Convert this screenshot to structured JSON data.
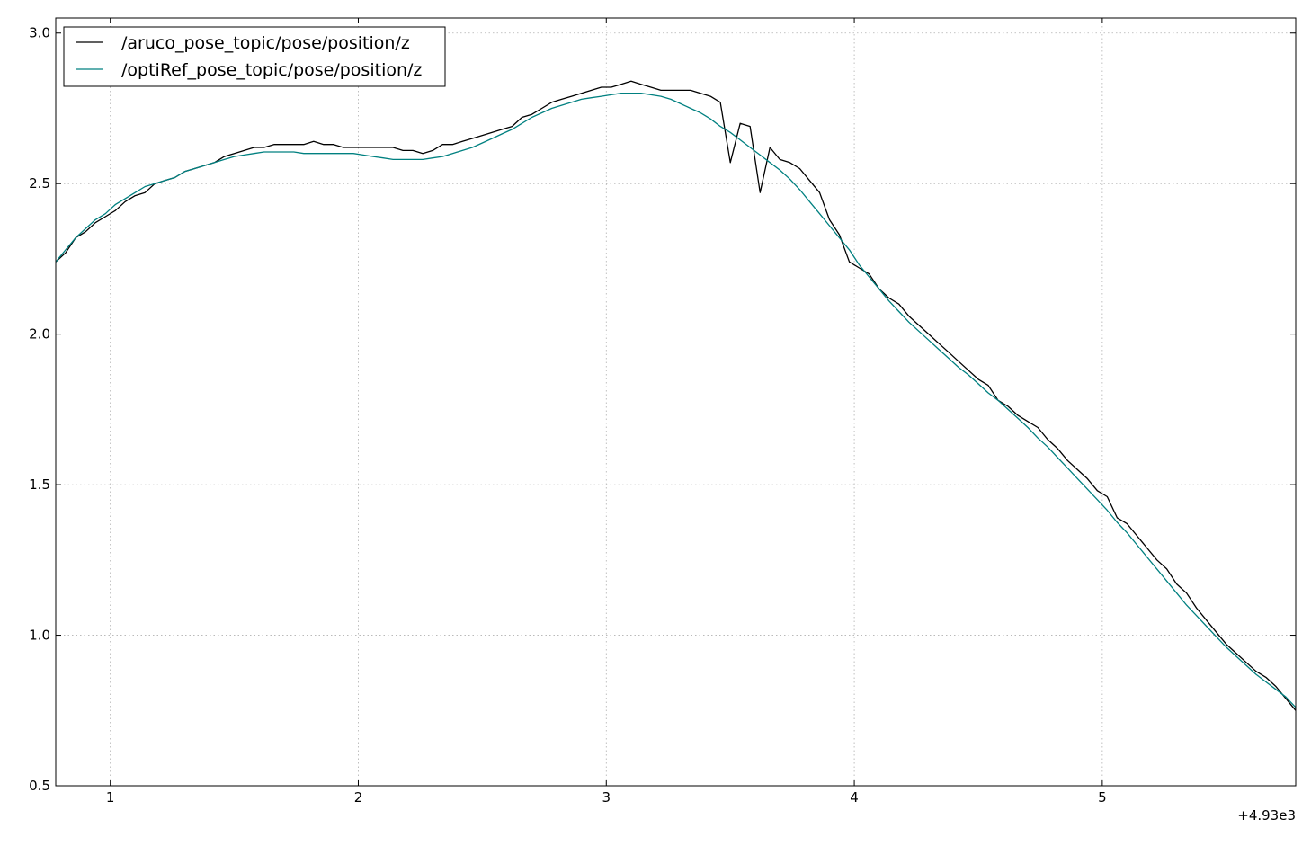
{
  "chart_data": {
    "type": "line",
    "title": "",
    "xlabel": "",
    "ylabel": "",
    "x_offset_label": "+4.93e3",
    "xlim": [
      0.78,
      5.78
    ],
    "ylim": [
      0.5,
      3.05
    ],
    "xticks": [
      1,
      2,
      3,
      4,
      5
    ],
    "yticks": [
      0.5,
      1.0,
      1.5,
      2.0,
      2.5,
      3.0
    ],
    "xtick_labels": [
      "1",
      "2",
      "3",
      "4",
      "5"
    ],
    "ytick_labels": [
      "0.5",
      "1.0",
      "1.5",
      "2.0",
      "2.5",
      "3.0"
    ],
    "grid": true,
    "legend_position": "upper-left",
    "series": [
      {
        "name": "/aruco_pose_topic/pose/position/z",
        "color": "#000000",
        "points": [
          [
            0.78,
            2.24
          ],
          [
            0.82,
            2.27
          ],
          [
            0.86,
            2.32
          ],
          [
            0.9,
            2.34
          ],
          [
            0.94,
            2.37
          ],
          [
            0.98,
            2.39
          ],
          [
            1.02,
            2.41
          ],
          [
            1.06,
            2.44
          ],
          [
            1.1,
            2.46
          ],
          [
            1.14,
            2.47
          ],
          [
            1.18,
            2.5
          ],
          [
            1.22,
            2.51
          ],
          [
            1.26,
            2.52
          ],
          [
            1.3,
            2.54
          ],
          [
            1.34,
            2.55
          ],
          [
            1.38,
            2.56
          ],
          [
            1.42,
            2.57
          ],
          [
            1.46,
            2.59
          ],
          [
            1.5,
            2.6
          ],
          [
            1.54,
            2.61
          ],
          [
            1.58,
            2.62
          ],
          [
            1.62,
            2.62
          ],
          [
            1.66,
            2.63
          ],
          [
            1.7,
            2.63
          ],
          [
            1.74,
            2.63
          ],
          [
            1.78,
            2.63
          ],
          [
            1.82,
            2.64
          ],
          [
            1.86,
            2.63
          ],
          [
            1.9,
            2.63
          ],
          [
            1.94,
            2.62
          ],
          [
            1.98,
            2.62
          ],
          [
            2.02,
            2.62
          ],
          [
            2.06,
            2.62
          ],
          [
            2.1,
            2.62
          ],
          [
            2.14,
            2.62
          ],
          [
            2.18,
            2.61
          ],
          [
            2.22,
            2.61
          ],
          [
            2.26,
            2.6
          ],
          [
            2.3,
            2.61
          ],
          [
            2.34,
            2.63
          ],
          [
            2.38,
            2.63
          ],
          [
            2.42,
            2.64
          ],
          [
            2.46,
            2.65
          ],
          [
            2.5,
            2.66
          ],
          [
            2.54,
            2.67
          ],
          [
            2.58,
            2.68
          ],
          [
            2.62,
            2.69
          ],
          [
            2.66,
            2.72
          ],
          [
            2.7,
            2.73
          ],
          [
            2.74,
            2.75
          ],
          [
            2.78,
            2.77
          ],
          [
            2.82,
            2.78
          ],
          [
            2.86,
            2.79
          ],
          [
            2.9,
            2.8
          ],
          [
            2.94,
            2.81
          ],
          [
            2.98,
            2.82
          ],
          [
            3.02,
            2.82
          ],
          [
            3.06,
            2.83
          ],
          [
            3.1,
            2.84
          ],
          [
            3.14,
            2.83
          ],
          [
            3.18,
            2.82
          ],
          [
            3.22,
            2.81
          ],
          [
            3.26,
            2.81
          ],
          [
            3.3,
            2.81
          ],
          [
            3.34,
            2.81
          ],
          [
            3.38,
            2.8
          ],
          [
            3.42,
            2.79
          ],
          [
            3.46,
            2.77
          ],
          [
            3.5,
            2.57
          ],
          [
            3.54,
            2.7
          ],
          [
            3.58,
            2.69
          ],
          [
            3.62,
            2.47
          ],
          [
            3.66,
            2.62
          ],
          [
            3.7,
            2.58
          ],
          [
            3.74,
            2.57
          ],
          [
            3.78,
            2.55
          ],
          [
            3.82,
            2.51
          ],
          [
            3.86,
            2.47
          ],
          [
            3.9,
            2.38
          ],
          [
            3.94,
            2.33
          ],
          [
            3.98,
            2.24
          ],
          [
            4.02,
            2.22
          ],
          [
            4.06,
            2.2
          ],
          [
            4.1,
            2.15
          ],
          [
            4.14,
            2.12
          ],
          [
            4.18,
            2.1
          ],
          [
            4.22,
            2.06
          ],
          [
            4.26,
            2.03
          ],
          [
            4.3,
            2.0
          ],
          [
            4.34,
            1.97
          ],
          [
            4.38,
            1.94
          ],
          [
            4.42,
            1.91
          ],
          [
            4.46,
            1.88
          ],
          [
            4.5,
            1.85
          ],
          [
            4.54,
            1.83
          ],
          [
            4.58,
            1.78
          ],
          [
            4.62,
            1.76
          ],
          [
            4.66,
            1.73
          ],
          [
            4.7,
            1.71
          ],
          [
            4.74,
            1.69
          ],
          [
            4.78,
            1.65
          ],
          [
            4.82,
            1.62
          ],
          [
            4.86,
            1.58
          ],
          [
            4.9,
            1.55
          ],
          [
            4.94,
            1.52
          ],
          [
            4.98,
            1.48
          ],
          [
            5.02,
            1.46
          ],
          [
            5.06,
            1.39
          ],
          [
            5.1,
            1.37
          ],
          [
            5.14,
            1.33
          ],
          [
            5.18,
            1.29
          ],
          [
            5.22,
            1.25
          ],
          [
            5.26,
            1.22
          ],
          [
            5.3,
            1.17
          ],
          [
            5.34,
            1.14
          ],
          [
            5.38,
            1.09
          ],
          [
            5.42,
            1.05
          ],
          [
            5.46,
            1.01
          ],
          [
            5.5,
            0.97
          ],
          [
            5.54,
            0.94
          ],
          [
            5.58,
            0.91
          ],
          [
            5.62,
            0.88
          ],
          [
            5.66,
            0.86
          ],
          [
            5.7,
            0.83
          ],
          [
            5.74,
            0.79
          ],
          [
            5.78,
            0.75
          ]
        ]
      },
      {
        "name": "/optiRef_pose_topic/pose/position/z",
        "color": "#008080",
        "points": [
          [
            0.78,
            2.24
          ],
          [
            0.82,
            2.28
          ],
          [
            0.86,
            2.32
          ],
          [
            0.9,
            2.35
          ],
          [
            0.94,
            2.38
          ],
          [
            0.98,
            2.4
          ],
          [
            1.02,
            2.43
          ],
          [
            1.06,
            2.45
          ],
          [
            1.1,
            2.47
          ],
          [
            1.14,
            2.49
          ],
          [
            1.18,
            2.5
          ],
          [
            1.22,
            2.51
          ],
          [
            1.26,
            2.52
          ],
          [
            1.3,
            2.54
          ],
          [
            1.34,
            2.55
          ],
          [
            1.38,
            2.56
          ],
          [
            1.42,
            2.57
          ],
          [
            1.46,
            2.58
          ],
          [
            1.5,
            2.59
          ],
          [
            1.54,
            2.595
          ],
          [
            1.58,
            2.6
          ],
          [
            1.62,
            2.605
          ],
          [
            1.66,
            2.605
          ],
          [
            1.7,
            2.605
          ],
          [
            1.74,
            2.605
          ],
          [
            1.78,
            2.6
          ],
          [
            1.82,
            2.6
          ],
          [
            1.86,
            2.6
          ],
          [
            1.9,
            2.6
          ],
          [
            1.94,
            2.6
          ],
          [
            1.98,
            2.6
          ],
          [
            2.02,
            2.595
          ],
          [
            2.06,
            2.59
          ],
          [
            2.1,
            2.585
          ],
          [
            2.14,
            2.58
          ],
          [
            2.18,
            2.58
          ],
          [
            2.22,
            2.58
          ],
          [
            2.26,
            2.58
          ],
          [
            2.3,
            2.585
          ],
          [
            2.34,
            2.59
          ],
          [
            2.38,
            2.6
          ],
          [
            2.42,
            2.61
          ],
          [
            2.46,
            2.62
          ],
          [
            2.5,
            2.635
          ],
          [
            2.54,
            2.65
          ],
          [
            2.58,
            2.665
          ],
          [
            2.62,
            2.68
          ],
          [
            2.66,
            2.7
          ],
          [
            2.7,
            2.72
          ],
          [
            2.74,
            2.735
          ],
          [
            2.78,
            2.75
          ],
          [
            2.82,
            2.76
          ],
          [
            2.86,
            2.77
          ],
          [
            2.9,
            2.78
          ],
          [
            2.94,
            2.785
          ],
          [
            2.98,
            2.79
          ],
          [
            3.02,
            2.795
          ],
          [
            3.06,
            2.8
          ],
          [
            3.1,
            2.8
          ],
          [
            3.14,
            2.8
          ],
          [
            3.18,
            2.795
          ],
          [
            3.22,
            2.79
          ],
          [
            3.26,
            2.78
          ],
          [
            3.3,
            2.765
          ],
          [
            3.34,
            2.75
          ],
          [
            3.38,
            2.735
          ],
          [
            3.42,
            2.715
          ],
          [
            3.46,
            2.69
          ],
          [
            3.5,
            2.67
          ],
          [
            3.54,
            2.645
          ],
          [
            3.58,
            2.62
          ],
          [
            3.62,
            2.595
          ],
          [
            3.66,
            2.57
          ],
          [
            3.7,
            2.545
          ],
          [
            3.74,
            2.515
          ],
          [
            3.78,
            2.48
          ],
          [
            3.82,
            2.44
          ],
          [
            3.86,
            2.4
          ],
          [
            3.9,
            2.36
          ],
          [
            3.94,
            2.32
          ],
          [
            3.98,
            2.28
          ],
          [
            4.02,
            2.23
          ],
          [
            4.06,
            2.19
          ],
          [
            4.1,
            2.15
          ],
          [
            4.14,
            2.11
          ],
          [
            4.18,
            2.075
          ],
          [
            4.22,
            2.04
          ],
          [
            4.26,
            2.01
          ],
          [
            4.3,
            1.98
          ],
          [
            4.34,
            1.95
          ],
          [
            4.38,
            1.92
          ],
          [
            4.42,
            1.89
          ],
          [
            4.46,
            1.865
          ],
          [
            4.5,
            1.835
          ],
          [
            4.54,
            1.805
          ],
          [
            4.58,
            1.78
          ],
          [
            4.62,
            1.75
          ],
          [
            4.66,
            1.72
          ],
          [
            4.7,
            1.69
          ],
          [
            4.74,
            1.655
          ],
          [
            4.78,
            1.625
          ],
          [
            4.82,
            1.59
          ],
          [
            4.86,
            1.555
          ],
          [
            4.9,
            1.52
          ],
          [
            4.94,
            1.485
          ],
          [
            4.98,
            1.45
          ],
          [
            5.02,
            1.415
          ],
          [
            5.06,
            1.375
          ],
          [
            5.1,
            1.34
          ],
          [
            5.14,
            1.3
          ],
          [
            5.18,
            1.26
          ],
          [
            5.22,
            1.22
          ],
          [
            5.26,
            1.18
          ],
          [
            5.3,
            1.14
          ],
          [
            5.34,
            1.1
          ],
          [
            5.38,
            1.065
          ],
          [
            5.42,
            1.03
          ],
          [
            5.46,
            0.995
          ],
          [
            5.5,
            0.96
          ],
          [
            5.54,
            0.93
          ],
          [
            5.58,
            0.9
          ],
          [
            5.62,
            0.87
          ],
          [
            5.66,
            0.845
          ],
          [
            5.7,
            0.82
          ],
          [
            5.74,
            0.795
          ],
          [
            5.78,
            0.76
          ]
        ]
      }
    ]
  }
}
